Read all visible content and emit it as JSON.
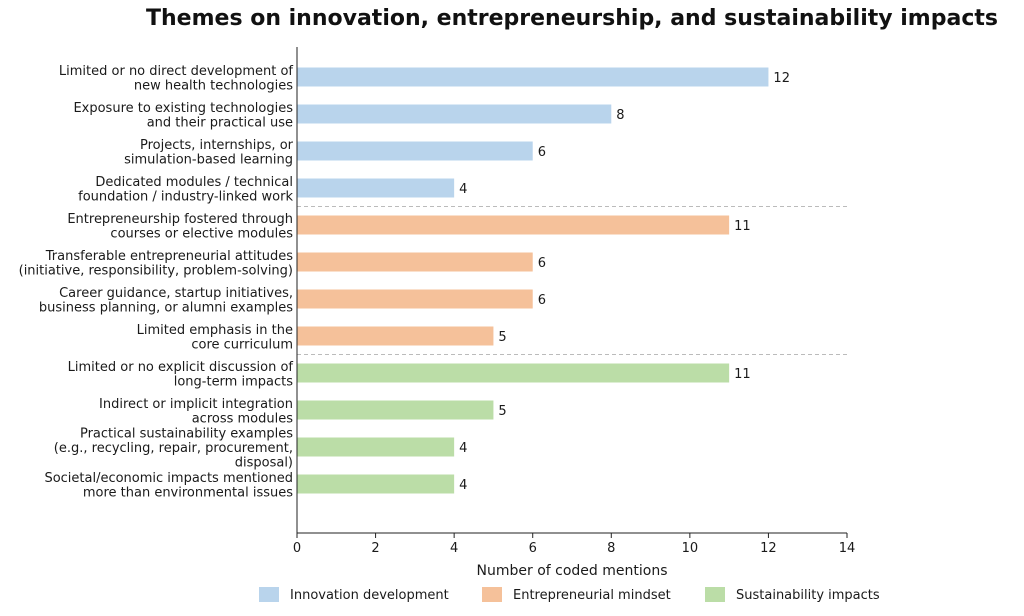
{
  "chart_data": {
    "type": "bar",
    "orientation": "horizontal",
    "title": "Themes on innovation, entrepreneurship, and sustainability impacts",
    "xlabel": "Number of coded mentions",
    "ylabel": "",
    "xlim": [
      0,
      14
    ],
    "xticks": [
      0,
      2,
      4,
      6,
      8,
      10,
      12,
      14
    ],
    "legend_placement": "bottom-center",
    "grid": false,
    "groups": [
      {
        "name": "Innovation development",
        "color": "#b9d4ec",
        "items": [
          {
            "label": [
              "Limited or no direct development of",
              "new health technologies"
            ],
            "value": 12
          },
          {
            "label": [
              "Exposure to existing technologies",
              "and their practical use"
            ],
            "value": 8
          },
          {
            "label": [
              "Projects, internships, or",
              "simulation-based learning"
            ],
            "value": 6
          },
          {
            "label": [
              "Dedicated modules / technical",
              "foundation / industry-linked work"
            ],
            "value": 4
          }
        ]
      },
      {
        "name": "Entrepreneurial mindset",
        "color": "#f5c19a",
        "items": [
          {
            "label": [
              "Entrepreneurship fostered through",
              "courses or elective modules"
            ],
            "value": 11
          },
          {
            "label": [
              "Transferable entrepreneurial attitudes",
              "(initiative, responsibility, problem-solving)"
            ],
            "value": 6
          },
          {
            "label": [
              "Career guidance, startup initiatives,",
              "business planning, or alumni examples"
            ],
            "value": 6
          },
          {
            "label": [
              "Limited emphasis in the",
              "core curriculum"
            ],
            "value": 5
          }
        ]
      },
      {
        "name": "Sustainability impacts",
        "color": "#bbdda7",
        "items": [
          {
            "label": [
              "Limited or no explicit discussion of",
              "long-term impacts"
            ],
            "value": 11
          },
          {
            "label": [
              "Indirect or implicit integration",
              "across modules"
            ],
            "value": 5
          },
          {
            "label": [
              "Practical sustainability examples",
              "(e.g., recycling, repair, procurement,",
              "disposal)"
            ],
            "value": 4
          },
          {
            "label": [
              "Societal/economic impacts mentioned",
              "more than environmental issues"
            ],
            "value": 4
          }
        ]
      }
    ]
  }
}
